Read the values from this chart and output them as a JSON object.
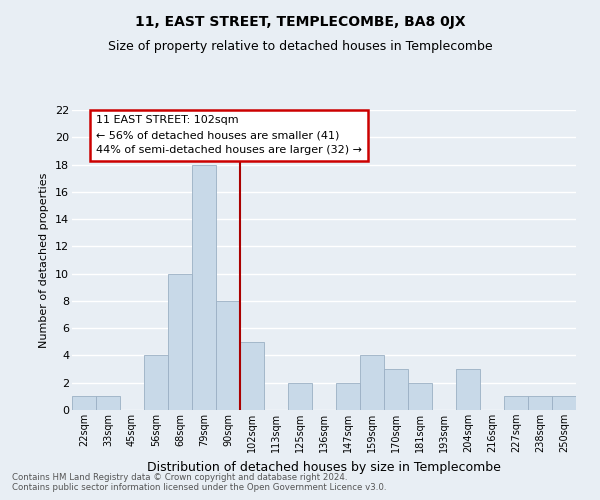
{
  "title": "11, EAST STREET, TEMPLECOMBE, BA8 0JX",
  "subtitle": "Size of property relative to detached houses in Templecombe",
  "xlabel": "Distribution of detached houses by size in Templecombe",
  "ylabel": "Number of detached properties",
  "bar_labels": [
    "22sqm",
    "33sqm",
    "45sqm",
    "56sqm",
    "68sqm",
    "79sqm",
    "90sqm",
    "102sqm",
    "113sqm",
    "125sqm",
    "136sqm",
    "147sqm",
    "159sqm",
    "170sqm",
    "181sqm",
    "193sqm",
    "204sqm",
    "216sqm",
    "227sqm",
    "238sqm",
    "250sqm"
  ],
  "bar_values": [
    1,
    1,
    0,
    4,
    10,
    18,
    8,
    5,
    0,
    2,
    0,
    2,
    4,
    3,
    2,
    0,
    3,
    0,
    1,
    1,
    1
  ],
  "bar_color": "#c8d9e8",
  "bar_edge_color": "#9bb0c4",
  "highlight_line_color": "#aa0000",
  "highlight_index": 7,
  "ylim": [
    0,
    22
  ],
  "yticks": [
    0,
    2,
    4,
    6,
    8,
    10,
    12,
    14,
    16,
    18,
    20,
    22
  ],
  "annotation_title": "11 EAST STREET: 102sqm",
  "annotation_line1": "← 56% of detached houses are smaller (41)",
  "annotation_line2": "44% of semi-detached houses are larger (32) →",
  "annotation_box_color": "#ffffff",
  "annotation_box_edge": "#cc0000",
  "footnote1": "Contains HM Land Registry data © Crown copyright and database right 2024.",
  "footnote2": "Contains public sector information licensed under the Open Government Licence v3.0.",
  "background_color": "#e8eef4",
  "grid_color": "#ffffff",
  "title_fontsize": 10,
  "subtitle_fontsize": 9
}
